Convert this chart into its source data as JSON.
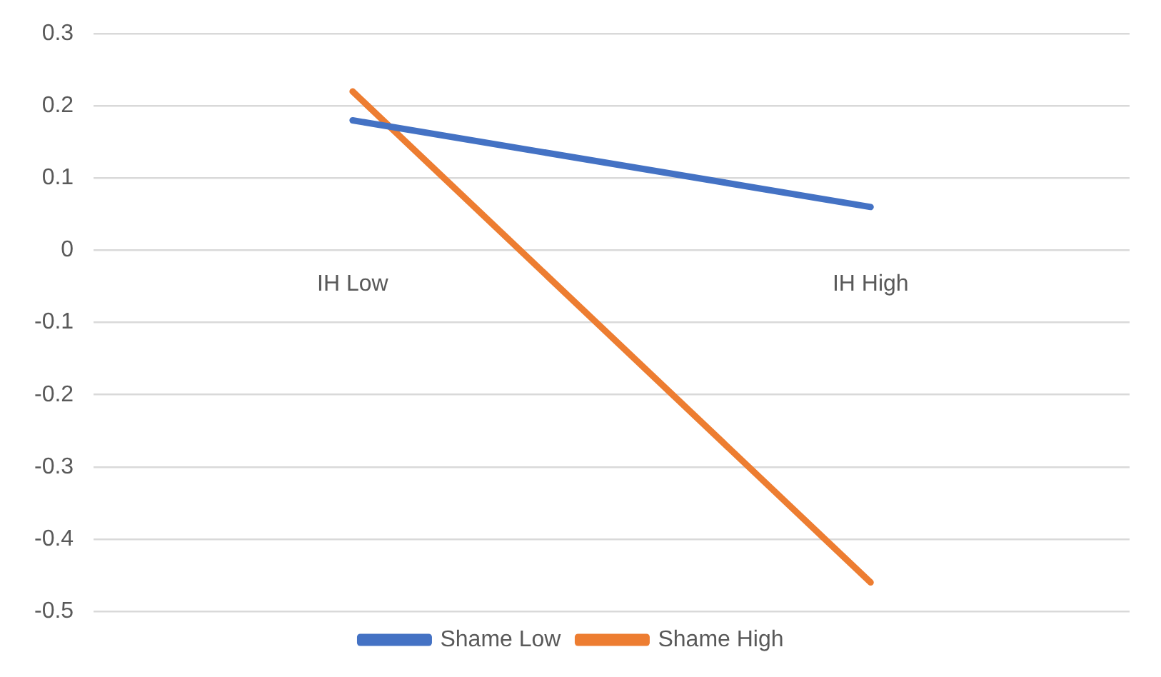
{
  "chart_data": {
    "type": "line",
    "categories": [
      "IH Low",
      "IH High"
    ],
    "series": [
      {
        "name": "Shame Low",
        "color": "#4472c4",
        "values": [
          0.18,
          0.06
        ]
      },
      {
        "name": "Shame High",
        "color": "#ed7d31",
        "values": [
          0.22,
          -0.46
        ]
      }
    ],
    "ylim": [
      -0.5,
      0.3
    ],
    "yticks": [
      -0.5,
      -0.4,
      -0.3,
      -0.2,
      -0.1,
      0,
      0.1,
      0.2,
      0.3
    ],
    "grid": "y",
    "legend": "bottom",
    "marker": "none",
    "line_style": "solid"
  }
}
